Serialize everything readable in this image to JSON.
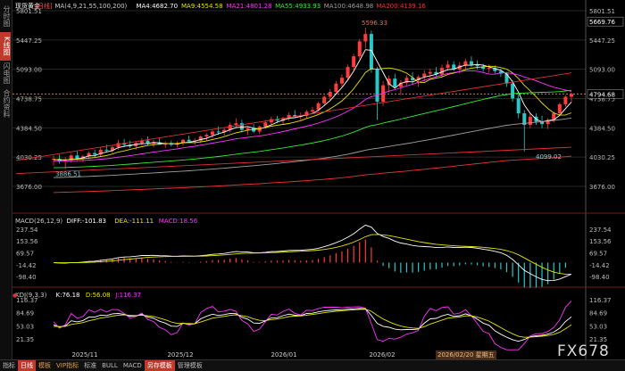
{
  "left_tabs": [
    {
      "label": "分时图",
      "active": false
    },
    {
      "label": "K线图",
      "active": true
    },
    {
      "label": "闪电图",
      "active": false
    },
    {
      "label": "合约资料",
      "active": false
    }
  ],
  "header": {
    "name": "现货黄金",
    "period": "[日线]",
    "ma_label": "MA(4,9,21,55,100,200)",
    "ma4": "MA4:4682.70",
    "ma9": "MA9:4554.58",
    "ma21": "MA21:4801.28",
    "ma55": "MA55:4933.93",
    "ma100": "MA100:4648.98",
    "ma200": "MA200:4139.16"
  },
  "price_axis": {
    "ticks": [
      {
        "label": "5801.51",
        "v": 5801.51
      },
      {
        "label": "5447.25",
        "v": 5447.25
      },
      {
        "label": "5093.00",
        "v": 5093.0
      },
      {
        "label": "4738.75",
        "v": 4738.75
      },
      {
        "label": "4384.50",
        "v": 4384.5
      },
      {
        "label": "4030.25",
        "v": 4030.25
      },
      {
        "label": "3676.00",
        "v": 3676.0
      }
    ],
    "right_tags": [
      {
        "label": "5669.76",
        "v": 5669.76,
        "color": "#ffffff",
        "bg": "#000000"
      },
      {
        "label": "4794.68",
        "v": 4794.68,
        "color": "#ffffff",
        "bg": "#000000"
      }
    ],
    "current_price": 4794.68
  },
  "annotations": {
    "high": "5596.33",
    "low1": "3886.51",
    "low2": "4099.02"
  },
  "macd": {
    "header_name": "MACD(26,12,9)",
    "diff": "DIFF:-101.83",
    "dea": "DEA:-111.11",
    "macd": "MACD:18.56",
    "ticks": [
      {
        "label": "237.54",
        "v": 237.54
      },
      {
        "label": "153.56",
        "v": 153.56
      },
      {
        "label": "69.57",
        "v": 69.57
      },
      {
        "label": "-14.42",
        "v": -14.42
      },
      {
        "label": "-98.40",
        "v": -98.4
      }
    ]
  },
  "kdj": {
    "header_name": "KDJ(9,3,3)",
    "k": "K:76.18",
    "d": "D:56.08",
    "j": "J:116.37",
    "ticks": [
      {
        "label": "116.37",
        "v": 116.37
      },
      {
        "label": "84.69",
        "v": 84.69
      },
      {
        "label": "53.03",
        "v": 53.03
      },
      {
        "label": "21.35",
        "v": 21.35
      }
    ]
  },
  "x_axis": {
    "labels": [
      {
        "label": "2025/11",
        "x": 95
      },
      {
        "label": "2025/12",
        "x": 202
      },
      {
        "label": "2026/01",
        "x": 318
      },
      {
        "label": "2026/02",
        "x": 428
      }
    ]
  },
  "cursor_date": "2026/02/20 星期五",
  "bottom_tabs": [
    {
      "label": "指标",
      "cls": ""
    },
    {
      "label": "日线",
      "cls": "active"
    },
    {
      "label": "模板",
      "cls": "hl"
    },
    {
      "label": "VIP指标",
      "cls": "hl"
    },
    {
      "label": "标准",
      "cls": ""
    },
    {
      "label": "BULL",
      "cls": ""
    },
    {
      "label": "MACD",
      "cls": ""
    },
    {
      "label": "另存模板",
      "cls": "active"
    },
    {
      "label": "管理模板",
      "cls": ""
    }
  ],
  "watermark": "FX678",
  "colors": {
    "up": "#ff3b3b",
    "down": "#28c8c8",
    "ma4": "#ffffff",
    "ma9": "#e5e500",
    "ma21": "#ff33ff",
    "ma55": "#33ee33",
    "ma100": "#a0a0a0",
    "ma200": "#ee3333"
  },
  "candles": [
    {
      "o": 4000,
      "h": 4050,
      "l": 3930,
      "c": 4010
    },
    {
      "o": 4010,
      "h": 4060,
      "l": 3950,
      "c": 3980
    },
    {
      "o": 3980,
      "h": 4030,
      "l": 3886.51,
      "c": 3990
    },
    {
      "o": 3990,
      "h": 4070,
      "l": 3960,
      "c": 4050
    },
    {
      "o": 4050,
      "h": 4100,
      "l": 3990,
      "c": 4010
    },
    {
      "o": 4010,
      "h": 4060,
      "l": 3970,
      "c": 4040
    },
    {
      "o": 4040,
      "h": 4100,
      "l": 4010,
      "c": 4080
    },
    {
      "o": 4080,
      "h": 4120,
      "l": 4030,
      "c": 4060
    },
    {
      "o": 4060,
      "h": 4150,
      "l": 4040,
      "c": 4120
    },
    {
      "o": 4120,
      "h": 4180,
      "l": 4090,
      "c": 4110
    },
    {
      "o": 4110,
      "h": 4170,
      "l": 4080,
      "c": 4150
    },
    {
      "o": 4150,
      "h": 4240,
      "l": 4120,
      "c": 4200
    },
    {
      "o": 4200,
      "h": 4250,
      "l": 4150,
      "c": 4180
    },
    {
      "o": 4180,
      "h": 4230,
      "l": 4140,
      "c": 4160
    },
    {
      "o": 4160,
      "h": 4220,
      "l": 4120,
      "c": 4200
    },
    {
      "o": 4200,
      "h": 4260,
      "l": 4170,
      "c": 4230
    },
    {
      "o": 4230,
      "h": 4280,
      "l": 4170,
      "c": 4190
    },
    {
      "o": 4190,
      "h": 4240,
      "l": 4150,
      "c": 4210
    },
    {
      "o": 4210,
      "h": 4260,
      "l": 4180,
      "c": 4180
    },
    {
      "o": 4180,
      "h": 4220,
      "l": 4140,
      "c": 4200
    },
    {
      "o": 4200,
      "h": 4230,
      "l": 4160,
      "c": 4180
    },
    {
      "o": 4180,
      "h": 4220,
      "l": 4150,
      "c": 4200
    },
    {
      "o": 4200,
      "h": 4250,
      "l": 4170,
      "c": 4240
    },
    {
      "o": 4240,
      "h": 4290,
      "l": 4200,
      "c": 4220
    },
    {
      "o": 4220,
      "h": 4260,
      "l": 4180,
      "c": 4230
    },
    {
      "o": 4230,
      "h": 4290,
      "l": 4200,
      "c": 4280
    },
    {
      "o": 4280,
      "h": 4320,
      "l": 4230,
      "c": 4300
    },
    {
      "o": 4300,
      "h": 4360,
      "l": 4260,
      "c": 4340
    },
    {
      "o": 4340,
      "h": 4400,
      "l": 4300,
      "c": 4330
    },
    {
      "o": 4330,
      "h": 4380,
      "l": 4290,
      "c": 4360
    },
    {
      "o": 4360,
      "h": 4450,
      "l": 4330,
      "c": 4420
    },
    {
      "o": 4420,
      "h": 4500,
      "l": 4380,
      "c": 4440
    },
    {
      "o": 4440,
      "h": 4480,
      "l": 4330,
      "c": 4360
    },
    {
      "o": 4360,
      "h": 4400,
      "l": 4300,
      "c": 4380
    },
    {
      "o": 4380,
      "h": 4430,
      "l": 4320,
      "c": 4340
    },
    {
      "o": 4340,
      "h": 4410,
      "l": 4310,
      "c": 4400
    },
    {
      "o": 4400,
      "h": 4480,
      "l": 4370,
      "c": 4450
    },
    {
      "o": 4450,
      "h": 4520,
      "l": 4420,
      "c": 4490
    },
    {
      "o": 4490,
      "h": 4530,
      "l": 4440,
      "c": 4470
    },
    {
      "o": 4470,
      "h": 4520,
      "l": 4430,
      "c": 4500
    },
    {
      "o": 4500,
      "h": 4570,
      "l": 4470,
      "c": 4540
    },
    {
      "o": 4540,
      "h": 4600,
      "l": 4500,
      "c": 4520
    },
    {
      "o": 4520,
      "h": 4570,
      "l": 4480,
      "c": 4530
    },
    {
      "o": 4530,
      "h": 4600,
      "l": 4500,
      "c": 4580
    },
    {
      "o": 4580,
      "h": 4640,
      "l": 4550,
      "c": 4600
    },
    {
      "o": 4600,
      "h": 4700,
      "l": 4580,
      "c": 4680
    },
    {
      "o": 4680,
      "h": 4780,
      "l": 4650,
      "c": 4760
    },
    {
      "o": 4760,
      "h": 4850,
      "l": 4720,
      "c": 4820
    },
    {
      "o": 4820,
      "h": 4950,
      "l": 4790,
      "c": 4920
    },
    {
      "o": 4920,
      "h": 5030,
      "l": 4880,
      "c": 4990
    },
    {
      "o": 4990,
      "h": 5150,
      "l": 4970,
      "c": 5120
    },
    {
      "o": 5120,
      "h": 5280,
      "l": 5080,
      "c": 5250
    },
    {
      "o": 5250,
      "h": 5460,
      "l": 5220,
      "c": 5430
    },
    {
      "o": 5430,
      "h": 5596.33,
      "l": 5350,
      "c": 5520
    },
    {
      "o": 5520,
      "h": 5560,
      "l": 5050,
      "c": 5090
    },
    {
      "o": 5090,
      "h": 5120,
      "l": 4480,
      "c": 4700
    },
    {
      "o": 4700,
      "h": 4950,
      "l": 4650,
      "c": 4900
    },
    {
      "o": 4900,
      "h": 5020,
      "l": 4820,
      "c": 4980
    },
    {
      "o": 4980,
      "h": 5040,
      "l": 4860,
      "c": 4880
    },
    {
      "o": 4880,
      "h": 4960,
      "l": 4780,
      "c": 4930
    },
    {
      "o": 4930,
      "h": 5020,
      "l": 4900,
      "c": 4990
    },
    {
      "o": 4990,
      "h": 5060,
      "l": 4900,
      "c": 4960
    },
    {
      "o": 4960,
      "h": 5020,
      "l": 4880,
      "c": 5000
    },
    {
      "o": 5000,
      "h": 5080,
      "l": 4950,
      "c": 5040
    },
    {
      "o": 5040,
      "h": 5100,
      "l": 4990,
      "c": 5060
    },
    {
      "o": 5060,
      "h": 5120,
      "l": 5000,
      "c": 5030
    },
    {
      "o": 5030,
      "h": 5150,
      "l": 5000,
      "c": 5110
    },
    {
      "o": 5110,
      "h": 5200,
      "l": 5080,
      "c": 5150
    },
    {
      "o": 5150,
      "h": 5190,
      "l": 5070,
      "c": 5090
    },
    {
      "o": 5090,
      "h": 5180,
      "l": 5040,
      "c": 5140
    },
    {
      "o": 5140,
      "h": 5220,
      "l": 5090,
      "c": 5190
    },
    {
      "o": 5190,
      "h": 5250,
      "l": 5120,
      "c": 5150
    },
    {
      "o": 5150,
      "h": 5200,
      "l": 5090,
      "c": 5130
    },
    {
      "o": 5130,
      "h": 5160,
      "l": 5060,
      "c": 5100
    },
    {
      "o": 5100,
      "h": 5150,
      "l": 5050,
      "c": 5110
    },
    {
      "o": 5110,
      "h": 5140,
      "l": 5040,
      "c": 5070
    },
    {
      "o": 5070,
      "h": 5100,
      "l": 5000,
      "c": 5040
    },
    {
      "o": 5040,
      "h": 5060,
      "l": 4880,
      "c": 4920
    },
    {
      "o": 4920,
      "h": 4960,
      "l": 4700,
      "c": 4740
    },
    {
      "o": 4740,
      "h": 4790,
      "l": 4500,
      "c": 4560
    },
    {
      "o": 4560,
      "h": 4600,
      "l": 4099.02,
      "c": 4420
    },
    {
      "o": 4420,
      "h": 4560,
      "l": 4380,
      "c": 4520
    },
    {
      "o": 4520,
      "h": 4560,
      "l": 4420,
      "c": 4460
    },
    {
      "o": 4460,
      "h": 4530,
      "l": 4380,
      "c": 4430
    },
    {
      "o": 4430,
      "h": 4500,
      "l": 4370,
      "c": 4480
    },
    {
      "o": 4480,
      "h": 4580,
      "l": 4450,
      "c": 4560
    },
    {
      "o": 4560,
      "h": 4690,
      "l": 4530,
      "c": 4670
    },
    {
      "o": 4670,
      "h": 4780,
      "l": 4640,
      "c": 4760
    },
    {
      "o": 4760,
      "h": 4810,
      "l": 4700,
      "c": 4794.68
    }
  ]
}
